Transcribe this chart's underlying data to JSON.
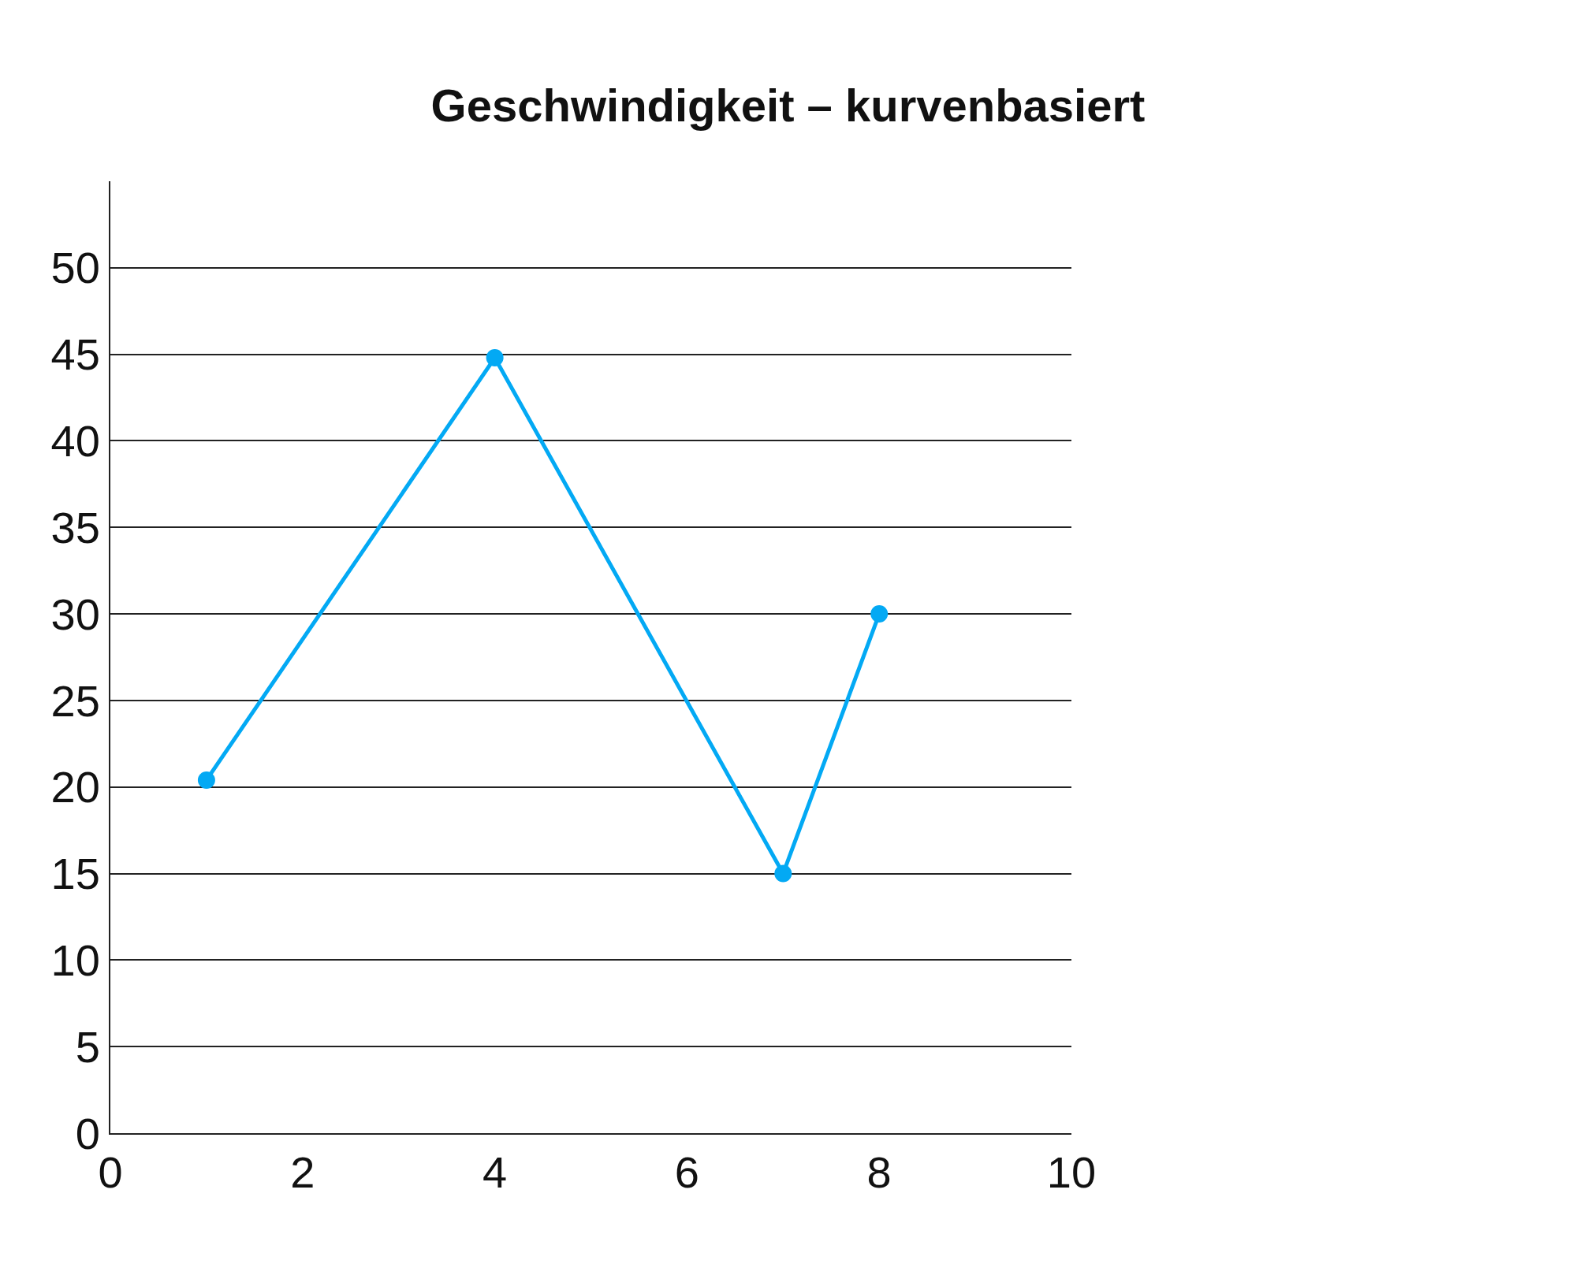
{
  "chart_data": {
    "type": "line",
    "title": "Geschwindigkeit – kurvenbasiert",
    "x": [
      1,
      4,
      7,
      8
    ],
    "series": [
      {
        "color": "#03a9f4",
        "values": [
          20.4,
          44.8,
          15,
          30
        ]
      }
    ],
    "xlim": [
      0,
      10
    ],
    "xticks": [
      0,
      2,
      4,
      6,
      8,
      10
    ],
    "ylim": [
      0,
      55
    ],
    "yticks": [
      0,
      5,
      10,
      15,
      20,
      25,
      30,
      35,
      40,
      45,
      50
    ],
    "grid": "y",
    "marker": "circle",
    "line_style": "solid",
    "legend": false
  }
}
